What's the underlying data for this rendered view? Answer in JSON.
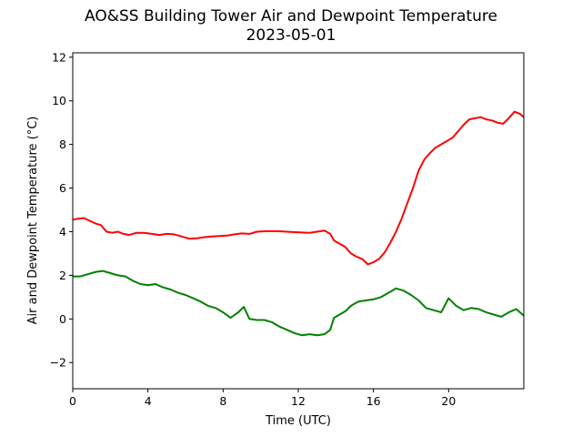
{
  "chart_data": {
    "type": "line",
    "title": "AO&SS Building Tower Air and Dewpoint Temperature",
    "subtitle": "2023-05-01",
    "xlabel": "Time (UTC)",
    "ylabel": "Air and Dewpoint Temperature (°C)",
    "xlim": [
      0,
      24
    ],
    "ylim": [
      -3.2,
      12.2
    ],
    "xticks": [
      0,
      4,
      8,
      12,
      16,
      20
    ],
    "yticks": [
      -2,
      0,
      2,
      4,
      6,
      8,
      10,
      12
    ],
    "grid": false,
    "series": [
      {
        "color": "#ff0000",
        "points": [
          [
            0.0,
            4.55
          ],
          [
            0.3,
            4.6
          ],
          [
            0.6,
            4.62
          ],
          [
            0.9,
            4.5
          ],
          [
            1.2,
            4.38
          ],
          [
            1.5,
            4.3
          ],
          [
            1.8,
            4.0
          ],
          [
            2.1,
            3.95
          ],
          [
            2.4,
            4.0
          ],
          [
            2.7,
            3.9
          ],
          [
            3.0,
            3.85
          ],
          [
            3.4,
            3.95
          ],
          [
            3.8,
            3.95
          ],
          [
            4.2,
            3.9
          ],
          [
            4.6,
            3.85
          ],
          [
            5.0,
            3.9
          ],
          [
            5.4,
            3.88
          ],
          [
            5.8,
            3.78
          ],
          [
            6.2,
            3.68
          ],
          [
            6.6,
            3.7
          ],
          [
            7.0,
            3.75
          ],
          [
            7.4,
            3.78
          ],
          [
            7.8,
            3.8
          ],
          [
            8.2,
            3.82
          ],
          [
            8.6,
            3.88
          ],
          [
            9.0,
            3.92
          ],
          [
            9.4,
            3.9
          ],
          [
            9.8,
            4.0
          ],
          [
            10.2,
            4.02
          ],
          [
            10.6,
            4.02
          ],
          [
            11.0,
            4.02
          ],
          [
            11.4,
            4.0
          ],
          [
            11.8,
            3.98
          ],
          [
            12.2,
            3.96
          ],
          [
            12.6,
            3.95
          ],
          [
            13.0,
            4.0
          ],
          [
            13.4,
            4.05
          ],
          [
            13.7,
            3.9
          ],
          [
            13.9,
            3.6
          ],
          [
            14.2,
            3.45
          ],
          [
            14.5,
            3.3
          ],
          [
            14.8,
            3.0
          ],
          [
            15.1,
            2.85
          ],
          [
            15.4,
            2.75
          ],
          [
            15.7,
            2.5
          ],
          [
            16.0,
            2.6
          ],
          [
            16.3,
            2.75
          ],
          [
            16.6,
            3.05
          ],
          [
            16.9,
            3.5
          ],
          [
            17.2,
            4.0
          ],
          [
            17.5,
            4.6
          ],
          [
            17.8,
            5.3
          ],
          [
            18.1,
            6.0
          ],
          [
            18.4,
            6.8
          ],
          [
            18.7,
            7.3
          ],
          [
            19.0,
            7.6
          ],
          [
            19.3,
            7.85
          ],
          [
            19.6,
            8.0
          ],
          [
            19.9,
            8.15
          ],
          [
            20.2,
            8.3
          ],
          [
            20.5,
            8.6
          ],
          [
            20.8,
            8.9
          ],
          [
            21.1,
            9.15
          ],
          [
            21.4,
            9.2
          ],
          [
            21.7,
            9.25
          ],
          [
            22.0,
            9.15
          ],
          [
            22.3,
            9.1
          ],
          [
            22.6,
            9.0
          ],
          [
            22.9,
            8.95
          ],
          [
            23.2,
            9.2
          ],
          [
            23.5,
            9.5
          ],
          [
            23.8,
            9.4
          ],
          [
            24.0,
            9.25
          ]
        ]
      },
      {
        "color": "#008000",
        "points": [
          [
            0.0,
            1.95
          ],
          [
            0.4,
            1.95
          ],
          [
            0.8,
            2.05
          ],
          [
            1.2,
            2.15
          ],
          [
            1.6,
            2.2
          ],
          [
            2.0,
            2.1
          ],
          [
            2.4,
            2.0
          ],
          [
            2.8,
            1.95
          ],
          [
            3.2,
            1.75
          ],
          [
            3.6,
            1.6
          ],
          [
            4.0,
            1.55
          ],
          [
            4.4,
            1.6
          ],
          [
            4.8,
            1.45
          ],
          [
            5.2,
            1.35
          ],
          [
            5.6,
            1.2
          ],
          [
            6.0,
            1.1
          ],
          [
            6.4,
            0.95
          ],
          [
            6.8,
            0.8
          ],
          [
            7.2,
            0.6
          ],
          [
            7.6,
            0.5
          ],
          [
            8.0,
            0.3
          ],
          [
            8.4,
            0.05
          ],
          [
            8.8,
            0.3
          ],
          [
            9.1,
            0.55
          ],
          [
            9.4,
            0.0
          ],
          [
            9.8,
            -0.05
          ],
          [
            10.2,
            -0.05
          ],
          [
            10.6,
            -0.15
          ],
          [
            11.0,
            -0.35
          ],
          [
            11.4,
            -0.5
          ],
          [
            11.8,
            -0.65
          ],
          [
            12.2,
            -0.75
          ],
          [
            12.6,
            -0.7
          ],
          [
            13.0,
            -0.75
          ],
          [
            13.4,
            -0.7
          ],
          [
            13.7,
            -0.5
          ],
          [
            13.9,
            0.05
          ],
          [
            14.2,
            0.2
          ],
          [
            14.5,
            0.35
          ],
          [
            14.8,
            0.6
          ],
          [
            15.2,
            0.8
          ],
          [
            15.6,
            0.85
          ],
          [
            16.0,
            0.9
          ],
          [
            16.4,
            1.0
          ],
          [
            16.8,
            1.2
          ],
          [
            17.2,
            1.4
          ],
          [
            17.6,
            1.3
          ],
          [
            18.0,
            1.1
          ],
          [
            18.4,
            0.85
          ],
          [
            18.8,
            0.5
          ],
          [
            19.2,
            0.4
          ],
          [
            19.6,
            0.3
          ],
          [
            20.0,
            0.95
          ],
          [
            20.4,
            0.6
          ],
          [
            20.8,
            0.4
          ],
          [
            21.2,
            0.5
          ],
          [
            21.6,
            0.45
          ],
          [
            22.0,
            0.3
          ],
          [
            22.4,
            0.2
          ],
          [
            22.8,
            0.1
          ],
          [
            23.2,
            0.3
          ],
          [
            23.6,
            0.45
          ],
          [
            24.0,
            0.15
          ]
        ]
      }
    ]
  }
}
